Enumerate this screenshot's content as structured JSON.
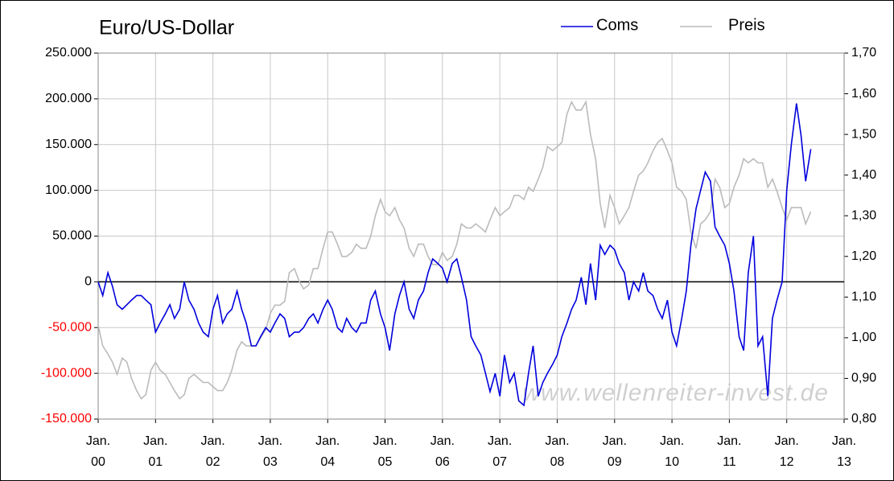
{
  "chart_data": {
    "type": "line",
    "title": "Euro/US-Dollar",
    "annotation": "www.wellenreiter-invest.de",
    "x": [
      2000.0,
      2000.08,
      2000.17,
      2000.25,
      2000.33,
      2000.42,
      2000.5,
      2000.58,
      2000.67,
      2000.75,
      2000.83,
      2000.92,
      2001.0,
      2001.08,
      2001.17,
      2001.25,
      2001.33,
      2001.42,
      2001.5,
      2001.58,
      2001.67,
      2001.75,
      2001.83,
      2001.92,
      2002.0,
      2002.08,
      2002.17,
      2002.25,
      2002.33,
      2002.42,
      2002.5,
      2002.58,
      2002.67,
      2002.75,
      2002.83,
      2002.92,
      2003.0,
      2003.08,
      2003.17,
      2003.25,
      2003.33,
      2003.42,
      2003.5,
      2003.58,
      2003.67,
      2003.75,
      2003.83,
      2003.92,
      2004.0,
      2004.08,
      2004.17,
      2004.25,
      2004.33,
      2004.42,
      2004.5,
      2004.58,
      2004.67,
      2004.75,
      2004.83,
      2004.92,
      2005.0,
      2005.08,
      2005.17,
      2005.25,
      2005.33,
      2005.42,
      2005.5,
      2005.58,
      2005.67,
      2005.75,
      2005.83,
      2005.92,
      2006.0,
      2006.08,
      2006.17,
      2006.25,
      2006.33,
      2006.42,
      2006.5,
      2006.58,
      2006.67,
      2006.75,
      2006.83,
      2006.92,
      2007.0,
      2007.08,
      2007.17,
      2007.25,
      2007.33,
      2007.42,
      2007.5,
      2007.58,
      2007.67,
      2007.75,
      2007.83,
      2007.92,
      2008.0,
      2008.08,
      2008.17,
      2008.25,
      2008.33,
      2008.42,
      2008.5,
      2008.58,
      2008.67,
      2008.75,
      2008.83,
      2008.92,
      2009.0,
      2009.08,
      2009.17,
      2009.25,
      2009.33,
      2009.42,
      2009.5,
      2009.58,
      2009.67,
      2009.75,
      2009.83,
      2009.92,
      2010.0,
      2010.08,
      2010.17,
      2010.25,
      2010.33,
      2010.42,
      2010.5,
      2010.58,
      2010.67,
      2010.75,
      2010.83,
      2010.92,
      2011.0,
      2011.08,
      2011.17,
      2011.25,
      2011.33,
      2011.42,
      2011.5,
      2011.58,
      2011.67,
      2011.75,
      2011.83,
      2011.92,
      2012.0,
      2012.08,
      2012.17,
      2012.25,
      2012.33,
      2012.42
    ],
    "series": [
      {
        "name": "Coms",
        "color": "#0000dd",
        "axis": "y",
        "values": [
          0,
          -15000,
          10000,
          -5000,
          -25000,
          -30000,
          -25000,
          -20000,
          -15000,
          -15000,
          -20000,
          -25000,
          -55000,
          -45000,
          -35000,
          -25000,
          -40000,
          -30000,
          0,
          -20000,
          -30000,
          -45000,
          -55000,
          -60000,
          -30000,
          -15000,
          -45000,
          -35000,
          -30000,
          -10000,
          -30000,
          -45000,
          -70000,
          -70000,
          -60000,
          -50000,
          -55000,
          -45000,
          -35000,
          -40000,
          -60000,
          -55000,
          -55000,
          -50000,
          -40000,
          -35000,
          -45000,
          -30000,
          -20000,
          -30000,
          -50000,
          -55000,
          -40000,
          -50000,
          -55000,
          -45000,
          -45000,
          -20000,
          -10000,
          -35000,
          -50000,
          -75000,
          -35000,
          -15000,
          0,
          -30000,
          -40000,
          -20000,
          -10000,
          10000,
          25000,
          20000,
          15000,
          0,
          20000,
          25000,
          5000,
          -20000,
          -60000,
          -70000,
          -80000,
          -100000,
          -120000,
          -100000,
          -125000,
          -80000,
          -110000,
          -100000,
          -130000,
          -135000,
          -100000,
          -70000,
          -125000,
          -110000,
          -100000,
          -90000,
          -80000,
          -60000,
          -45000,
          -30000,
          -20000,
          5000,
          -25000,
          20000,
          -20000,
          40000,
          30000,
          40000,
          35000,
          20000,
          10000,
          -20000,
          0,
          -10000,
          10000,
          -10000,
          -15000,
          -30000,
          -40000,
          -20000,
          -55000,
          -70000,
          -40000,
          -10000,
          40000,
          80000,
          100000,
          120000,
          110000,
          60000,
          50000,
          40000,
          20000,
          -10000,
          -60000,
          -75000,
          10000,
          50000,
          -70000,
          -60000,
          -125000,
          -40000,
          -20000,
          0,
          100000,
          150000,
          195000,
          160000,
          110000,
          145000
        ]
      },
      {
        "name": "Preis",
        "color": "#bbbbbb",
        "axis": "y2",
        "values": [
          1.03,
          0.98,
          0.96,
          0.94,
          0.91,
          0.95,
          0.94,
          0.9,
          0.87,
          0.85,
          0.86,
          0.92,
          0.94,
          0.92,
          0.91,
          0.89,
          0.87,
          0.85,
          0.86,
          0.9,
          0.91,
          0.9,
          0.89,
          0.89,
          0.88,
          0.87,
          0.87,
          0.89,
          0.92,
          0.97,
          0.99,
          0.98,
          0.98,
          0.98,
          1.0,
          1.02,
          1.06,
          1.08,
          1.08,
          1.09,
          1.16,
          1.17,
          1.14,
          1.12,
          1.13,
          1.17,
          1.17,
          1.22,
          1.26,
          1.26,
          1.23,
          1.2,
          1.2,
          1.21,
          1.23,
          1.22,
          1.22,
          1.25,
          1.3,
          1.34,
          1.31,
          1.3,
          1.32,
          1.29,
          1.27,
          1.22,
          1.2,
          1.23,
          1.23,
          1.2,
          1.18,
          1.18,
          1.21,
          1.19,
          1.2,
          1.23,
          1.28,
          1.27,
          1.27,
          1.28,
          1.27,
          1.26,
          1.29,
          1.32,
          1.3,
          1.31,
          1.32,
          1.35,
          1.35,
          1.34,
          1.37,
          1.36,
          1.39,
          1.42,
          1.47,
          1.46,
          1.47,
          1.48,
          1.55,
          1.58,
          1.56,
          1.56,
          1.58,
          1.5,
          1.44,
          1.33,
          1.27,
          1.35,
          1.32,
          1.28,
          1.3,
          1.32,
          1.36,
          1.4,
          1.41,
          1.43,
          1.46,
          1.48,
          1.49,
          1.46,
          1.43,
          1.37,
          1.36,
          1.34,
          1.26,
          1.22,
          1.28,
          1.29,
          1.31,
          1.39,
          1.37,
          1.32,
          1.33,
          1.37,
          1.4,
          1.44,
          1.43,
          1.44,
          1.43,
          1.43,
          1.37,
          1.39,
          1.36,
          1.32,
          1.29,
          1.32,
          1.32,
          1.32,
          1.28,
          1.31
        ]
      }
    ],
    "xlim": [
      2000,
      2013
    ],
    "xticks": [
      {
        "value": 2000,
        "label": "Jan.\n00"
      },
      {
        "value": 2001,
        "label": "Jan.\n01"
      },
      {
        "value": 2002,
        "label": "Jan.\n02"
      },
      {
        "value": 2003,
        "label": "Jan.\n03"
      },
      {
        "value": 2004,
        "label": "Jan.\n04"
      },
      {
        "value": 2005,
        "label": "Jan.\n05"
      },
      {
        "value": 2006,
        "label": "Jan.\n06"
      },
      {
        "value": 2007,
        "label": "Jan.\n07"
      },
      {
        "value": 2008,
        "label": "Jan.\n08"
      },
      {
        "value": 2009,
        "label": "Jan.\n09"
      },
      {
        "value": 2010,
        "label": "Jan.\n10"
      },
      {
        "value": 2011,
        "label": "Jan.\n11"
      },
      {
        "value": 2012,
        "label": "Jan.\n12"
      },
      {
        "value": 2013,
        "label": "Jan.\n13"
      }
    ],
    "ylim": [
      -150000,
      250000
    ],
    "yticks": [
      {
        "value": -150000,
        "label": "-150.000"
      },
      {
        "value": -100000,
        "label": "-100.000"
      },
      {
        "value": -50000,
        "label": "-50.000"
      },
      0,
      {
        "value": 50000,
        "label": "50.000"
      },
      {
        "value": 100000,
        "label": "100.000"
      },
      {
        "value": 150000,
        "label": "150.000"
      },
      {
        "value": 200000,
        "label": "200.000"
      },
      {
        "value": 250000,
        "label": "250.000"
      }
    ],
    "y2lim": [
      0.8,
      1.7
    ],
    "y2ticks": [
      {
        "value": 0.8,
        "label": "0,80"
      },
      {
        "value": 0.9,
        "label": "0,90"
      },
      {
        "value": 1.0,
        "label": "1,00"
      },
      {
        "value": 1.1,
        "label": "1,10"
      },
      {
        "value": 1.2,
        "label": "1,20"
      },
      {
        "value": 1.3,
        "label": "1,30"
      },
      {
        "value": 1.4,
        "label": "1,40"
      },
      {
        "value": 1.5,
        "label": "1,50"
      },
      {
        "value": 1.6,
        "label": "1,60"
      },
      {
        "value": 1.7,
        "label": "1,70"
      }
    ],
    "negative_tick_color": "#ff0000",
    "grid": true,
    "legend": "top-right"
  }
}
